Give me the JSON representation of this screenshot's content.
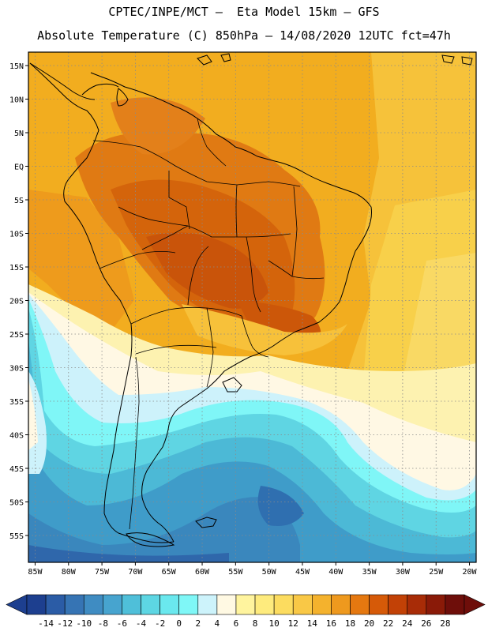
{
  "header": {
    "title_line1": "CPTEC/INPE/MCT –  Eta Model 15km – GFS",
    "title_line2": "Absolute Temperature (C) 850hPa – 14/08/2020 12UTC fct=47h"
  },
  "map": {
    "variable": "Absolute Temperature (C)",
    "level": "850hPa",
    "lon_range": [
      -86,
      -19
    ],
    "lat_range": [
      -59,
      17
    ],
    "lat_ticks": [
      {
        "value": 15,
        "label": "15N"
      },
      {
        "value": 10,
        "label": "10N"
      },
      {
        "value": 5,
        "label": "5N"
      },
      {
        "value": 0,
        "label": "EQ"
      },
      {
        "value": -5,
        "label": "5S"
      },
      {
        "value": -10,
        "label": "10S"
      },
      {
        "value": -15,
        "label": "15S"
      },
      {
        "value": -20,
        "label": "20S"
      },
      {
        "value": -25,
        "label": "25S"
      },
      {
        "value": -30,
        "label": "30S"
      },
      {
        "value": -35,
        "label": "35S"
      },
      {
        "value": -40,
        "label": "40S"
      },
      {
        "value": -45,
        "label": "45S"
      },
      {
        "value": -50,
        "label": "50S"
      },
      {
        "value": -55,
        "label": "55S"
      }
    ],
    "lon_ticks": [
      {
        "value": -85,
        "label": "85W"
      },
      {
        "value": -80,
        "label": "80W"
      },
      {
        "value": -75,
        "label": "75W"
      },
      {
        "value": -70,
        "label": "70W"
      },
      {
        "value": -65,
        "label": "65W"
      },
      {
        "value": -60,
        "label": "60W"
      },
      {
        "value": -55,
        "label": "55W"
      },
      {
        "value": -50,
        "label": "50W"
      },
      {
        "value": -45,
        "label": "45W"
      },
      {
        "value": -40,
        "label": "40W"
      },
      {
        "value": -35,
        "label": "35W"
      },
      {
        "value": -30,
        "label": "30W"
      },
      {
        "value": -25,
        "label": "25W"
      },
      {
        "value": -20,
        "label": "20W"
      }
    ]
  },
  "colorbar": {
    "labels": [
      "-14",
      "-12",
      "-10",
      "-8",
      "-6",
      "-4",
      "-2",
      "0",
      "2",
      "4",
      "6",
      "8",
      "10",
      "12",
      "14",
      "16",
      "18",
      "20",
      "22",
      "24",
      "26",
      "28"
    ],
    "colors": [
      "#1d3f8f",
      "#2b5ca6",
      "#3674b4",
      "#3f8cc2",
      "#47a4cf",
      "#4fbfd9",
      "#5dd6e3",
      "#6ae8ee",
      "#7ff7f7",
      "#cdf3fb",
      "#fff9e3",
      "#fff49e",
      "#feeb7d",
      "#fcdc5f",
      "#f9c846",
      "#f4b22d",
      "#ee991e",
      "#e57810",
      "#d65a08",
      "#c24106",
      "#a82c07",
      "#8a1a08",
      "#6e0e0a"
    ],
    "under_color": "#1d3f8f",
    "over_color": "#6e0e0a"
  }
}
